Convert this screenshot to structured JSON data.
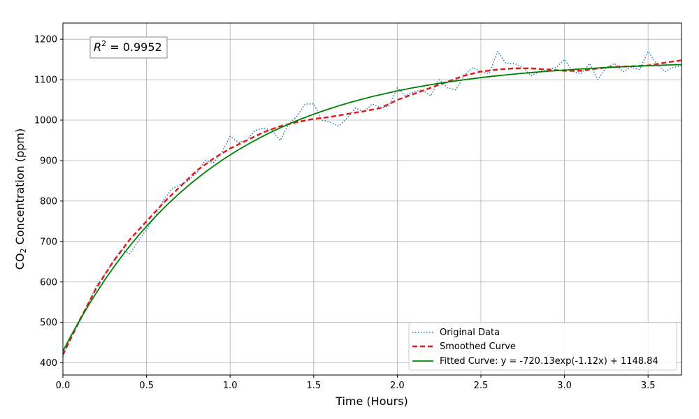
{
  "chart_data": {
    "type": "line",
    "xlabel": "Time (Hours)",
    "ylabel_main": "CO",
    "ylabel_sub": "2",
    "ylabel_rest": " Concentration (ppm)",
    "xlim": [
      0,
      3.7
    ],
    "ylim": [
      370,
      1240
    ],
    "xticks": [
      0.0,
      0.5,
      1.0,
      1.5,
      2.0,
      2.5,
      3.0,
      3.5
    ],
    "xtick_labels": [
      "0.0",
      "0.5",
      "1.0",
      "1.5",
      "2.0",
      "2.5",
      "3.0",
      "3.5"
    ],
    "yticks": [
      400,
      500,
      600,
      700,
      800,
      900,
      1000,
      1100,
      1200
    ],
    "ytick_labels": [
      "400",
      "500",
      "600",
      "700",
      "800",
      "900",
      "1000",
      "1100",
      "1200"
    ],
    "grid": true,
    "legend_placement": "lower-right",
    "annotation": {
      "r2_symbol": "R",
      "r2_exp": "2",
      "r2_value": " = 0.9952",
      "placement": "top-left"
    },
    "series": [
      {
        "name": "Original Data",
        "style": "dotted",
        "color": "#1f77b4",
        "x": [
          0.0,
          0.05,
          0.1,
          0.15,
          0.2,
          0.25,
          0.3,
          0.35,
          0.4,
          0.45,
          0.5,
          0.55,
          0.6,
          0.65,
          0.7,
          0.75,
          0.8,
          0.85,
          0.9,
          0.95,
          1.0,
          1.05,
          1.1,
          1.15,
          1.2,
          1.25,
          1.3,
          1.35,
          1.4,
          1.45,
          1.5,
          1.55,
          1.6,
          1.65,
          1.7,
          1.75,
          1.8,
          1.85,
          1.9,
          1.95,
          2.0,
          2.05,
          2.1,
          2.15,
          2.2,
          2.25,
          2.3,
          2.35,
          2.4,
          2.45,
          2.5,
          2.55,
          2.6,
          2.65,
          2.7,
          2.75,
          2.8,
          2.85,
          2.9,
          2.95,
          3.0,
          3.05,
          3.1,
          3.15,
          3.2,
          3.25,
          3.3,
          3.35,
          3.4,
          3.45,
          3.5,
          3.55,
          3.6,
          3.65,
          3.7
        ],
        "y": [
          415,
          470,
          500,
          545,
          590,
          620,
          650,
          680,
          670,
          700,
          730,
          760,
          800,
          830,
          840,
          850,
          870,
          900,
          895,
          920,
          960,
          945,
          950,
          975,
          980,
          975,
          950,
          990,
          1010,
          1040,
          1040,
          1000,
          995,
          985,
          1005,
          1030,
          1020,
          1040,
          1030,
          1035,
          1080,
          1060,
          1070,
          1075,
          1060,
          1100,
          1080,
          1075,
          1110,
          1130,
          1120,
          1115,
          1170,
          1140,
          1140,
          1130,
          1110,
          1120,
          1125,
          1130,
          1150,
          1120,
          1115,
          1140,
          1100,
          1130,
          1140,
          1120,
          1130,
          1125,
          1170,
          1140,
          1120,
          1130,
          1135
        ]
      },
      {
        "name": "Smoothed Curve",
        "style": "dashed",
        "color": "#e41a1c",
        "x": [
          0.0,
          0.1,
          0.2,
          0.3,
          0.4,
          0.5,
          0.6,
          0.7,
          0.8,
          0.9,
          1.0,
          1.1,
          1.2,
          1.3,
          1.4,
          1.5,
          1.6,
          1.7,
          1.8,
          1.9,
          2.0,
          2.1,
          2.2,
          2.3,
          2.4,
          2.5,
          2.6,
          2.7,
          2.8,
          2.9,
          3.0,
          3.1,
          3.2,
          3.3,
          3.4,
          3.5,
          3.6,
          3.7
        ],
        "y": [
          420,
          505,
          585,
          650,
          705,
          750,
          795,
          835,
          875,
          905,
          930,
          950,
          970,
          985,
          995,
          1003,
          1008,
          1015,
          1022,
          1030,
          1050,
          1065,
          1080,
          1095,
          1110,
          1120,
          1125,
          1128,
          1128,
          1125,
          1122,
          1122,
          1128,
          1132,
          1133,
          1135,
          1142,
          1148
        ]
      },
      {
        "name": "Fitted Curve: y = -720.13exp(-1.12x) + 1148.84",
        "style": "solid",
        "color": "#008000",
        "fit": {
          "a": -720.13,
          "b": -1.12,
          "c": 1148.84
        }
      }
    ]
  }
}
